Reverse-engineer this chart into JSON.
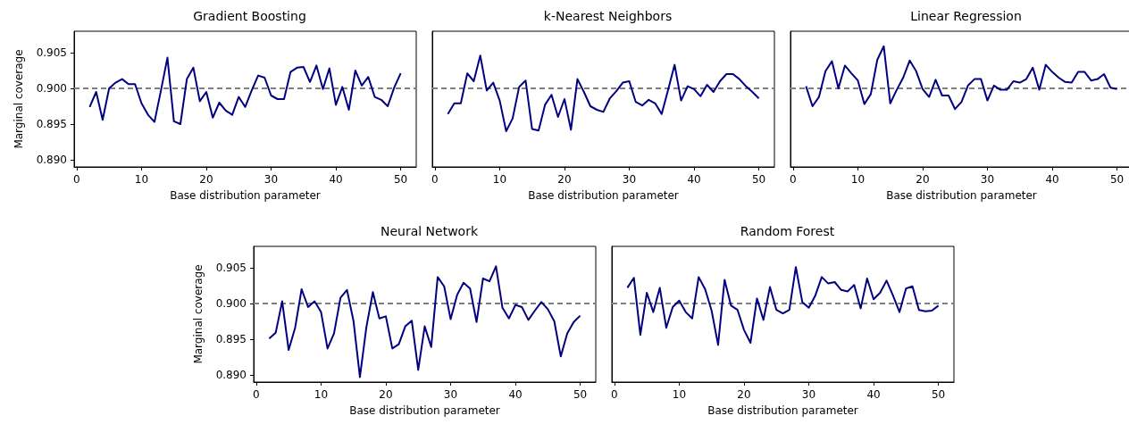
{
  "chart_data": [
    {
      "type": "line",
      "title": "Gradient Boosting",
      "xlabel": "Base distribution parameter",
      "ylabel": "Marginal coverage",
      "x": [
        2,
        3,
        4,
        5,
        6,
        7,
        8,
        9,
        10,
        11,
        12,
        13,
        14,
        15,
        16,
        17,
        18,
        19,
        20,
        21,
        22,
        23,
        24,
        25,
        26,
        27,
        28,
        29,
        30,
        31,
        32,
        33,
        34,
        35,
        36,
        37,
        38,
        39,
        40,
        41,
        42,
        43,
        44,
        45,
        46,
        47,
        48,
        49,
        50
      ],
      "series": [
        {
          "color": "#000080",
          "values": [
            0.8974,
            0.8995,
            0.8956,
            0.9,
            0.9008,
            0.9013,
            0.9006,
            0.9006,
            0.8979,
            0.8963,
            0.8953,
            0.8997,
            0.9043,
            0.8954,
            0.895,
            0.9013,
            0.9029,
            0.8982,
            0.8995,
            0.8959,
            0.898,
            0.8969,
            0.8963,
            0.8988,
            0.8974,
            0.8997,
            0.9018,
            0.9015,
            0.899,
            0.8985,
            0.8985,
            0.9023,
            0.9029,
            0.903,
            0.9009,
            0.9032,
            0.8999,
            0.9028,
            0.8977,
            0.9002,
            0.897,
            0.9025,
            0.9004,
            0.9016,
            0.8988,
            0.8984,
            0.8975,
            0.9001,
            0.9021
          ]
        }
      ],
      "xlim": [
        -0.4,
        52.4
      ],
      "xticks": [
        0,
        10,
        20,
        30,
        40,
        50
      ],
      "ylim": [
        0.889,
        0.908
      ],
      "yticks": [
        {
          "value": 0.89,
          "label": "0.890"
        },
        {
          "value": 0.895,
          "label": "0.895"
        },
        {
          "value": 0.9,
          "label": "0.900"
        },
        {
          "value": 0.905,
          "label": "0.905"
        }
      ],
      "ref_lines": [
        {
          "axis": "y",
          "value": 0.9,
          "color": "#808080",
          "line_style": "dashed"
        }
      ]
    },
    {
      "type": "line",
      "title": "k-Nearest Neighbors",
      "xlabel": "Base distribution parameter",
      "x": [
        2,
        3,
        4,
        5,
        6,
        7,
        8,
        9,
        10,
        11,
        12,
        13,
        14,
        15,
        16,
        17,
        18,
        19,
        20,
        21,
        22,
        23,
        24,
        25,
        26,
        27,
        28,
        29,
        30,
        31,
        32,
        33,
        34,
        35,
        36,
        37,
        38,
        39,
        40,
        41,
        42,
        43,
        44,
        45,
        46,
        47,
        48,
        49,
        50
      ],
      "series": [
        {
          "color": "#000080",
          "values": [
            0.8964,
            0.8979,
            0.8979,
            0.9021,
            0.901,
            0.9046,
            0.8997,
            0.9008,
            0.8983,
            0.894,
            0.8958,
            0.9002,
            0.9011,
            0.8943,
            0.8941,
            0.8977,
            0.8991,
            0.896,
            0.8985,
            0.8942,
            0.9013,
            0.8995,
            0.8975,
            0.897,
            0.8967,
            0.8986,
            0.8996,
            0.9008,
            0.901,
            0.8981,
            0.8976,
            0.8984,
            0.8979,
            0.8964,
            0.8998,
            0.9033,
            0.8983,
            0.9003,
            0.8999,
            0.8989,
            0.9005,
            0.8995,
            0.901,
            0.902,
            0.902,
            0.9013,
            0.9003,
            0.8995,
            0.8986
          ]
        }
      ],
      "xlim": [
        -0.4,
        52.4
      ],
      "xticks": [
        0,
        10,
        20,
        30,
        40,
        50
      ],
      "ylim": [
        0.889,
        0.908
      ],
      "tick_labels": "x",
      "ref_lines": [
        {
          "axis": "y",
          "value": 0.9,
          "color": "#808080",
          "line_style": "dashed"
        }
      ]
    },
    {
      "type": "line",
      "title": "Linear Regression",
      "xlabel": "Base distribution parameter",
      "x": [
        2,
        3,
        4,
        5,
        6,
        7,
        8,
        9,
        10,
        11,
        12,
        13,
        14,
        15,
        16,
        17,
        18,
        19,
        20,
        21,
        22,
        23,
        24,
        25,
        26,
        27,
        28,
        29,
        30,
        31,
        32,
        33,
        34,
        35,
        36,
        37,
        38,
        39,
        40,
        41,
        42,
        43,
        44,
        45,
        46,
        47,
        48,
        49,
        50
      ],
      "series": [
        {
          "color": "#000080",
          "values": [
            0.9003,
            0.8975,
            0.8988,
            0.9024,
            0.9038,
            0.9,
            0.9032,
            0.9021,
            0.9011,
            0.8978,
            0.8992,
            0.904,
            0.9059,
            0.8979,
            0.8998,
            0.9015,
            0.9039,
            0.9024,
            0.8999,
            0.8988,
            0.9012,
            0.899,
            0.899,
            0.8971,
            0.8981,
            0.9004,
            0.9013,
            0.9013,
            0.8983,
            0.9004,
            0.8998,
            0.8998,
            0.901,
            0.9008,
            0.9013,
            0.9029,
            0.8998,
            0.9033,
            0.9023,
            0.9015,
            0.9009,
            0.9008,
            0.9023,
            0.9023,
            0.9011,
            0.9013,
            0.902,
            0.9001,
            0.8999
          ]
        }
      ],
      "xlim": [
        -0.4,
        52.4
      ],
      "xticks": [
        0,
        10,
        20,
        30,
        40,
        50
      ],
      "ylim": [
        0.889,
        0.908
      ],
      "tick_labels": "x",
      "ref_lines": [
        {
          "axis": "y",
          "value": 0.9,
          "color": "#808080",
          "line_style": "dashed"
        }
      ]
    },
    {
      "type": "line",
      "title": "Neural Network",
      "xlabel": "Base distribution parameter",
      "ylabel": "Marginal coverage",
      "x": [
        2,
        3,
        4,
        5,
        6,
        7,
        8,
        9,
        10,
        11,
        12,
        13,
        14,
        15,
        16,
        17,
        18,
        19,
        20,
        21,
        22,
        23,
        24,
        25,
        26,
        27,
        28,
        29,
        30,
        31,
        32,
        33,
        34,
        35,
        36,
        37,
        38,
        39,
        40,
        41,
        42,
        43,
        44,
        45,
        46,
        47,
        48,
        49,
        50
      ],
      "series": [
        {
          "color": "#000080",
          "values": [
            0.8951,
            0.8959,
            0.9003,
            0.8935,
            0.8966,
            0.902,
            0.8995,
            0.9003,
            0.8988,
            0.8937,
            0.8958,
            0.9008,
            0.9019,
            0.8976,
            0.8897,
            0.8967,
            0.9016,
            0.8979,
            0.8982,
            0.8937,
            0.8943,
            0.8968,
            0.8976,
            0.8907,
            0.8968,
            0.8939,
            0.9037,
            0.9024,
            0.8978,
            0.9012,
            0.9029,
            0.9021,
            0.8974,
            0.9035,
            0.9031,
            0.9052,
            0.8994,
            0.8979,
            0.8998,
            0.8995,
            0.8977,
            0.899,
            0.9002,
            0.8992,
            0.8975,
            0.8926,
            0.8958,
            0.8974,
            0.8983
          ]
        }
      ],
      "xlim": [
        -0.4,
        52.4
      ],
      "xticks": [
        0,
        10,
        20,
        30,
        40,
        50
      ],
      "ylim": [
        0.889,
        0.908
      ],
      "yticks": [
        {
          "value": 0.89,
          "label": "0.890"
        },
        {
          "value": 0.895,
          "label": "0.895"
        },
        {
          "value": 0.9,
          "label": "0.900"
        },
        {
          "value": 0.905,
          "label": "0.905"
        }
      ],
      "ref_lines": [
        {
          "axis": "y",
          "value": 0.9,
          "color": "#808080",
          "line_style": "dashed"
        }
      ]
    },
    {
      "type": "line",
      "title": "Random Forest",
      "xlabel": "Base distribution parameter",
      "x": [
        2,
        3,
        4,
        5,
        6,
        7,
        8,
        9,
        10,
        11,
        12,
        13,
        14,
        15,
        16,
        17,
        18,
        19,
        20,
        21,
        22,
        23,
        24,
        25,
        26,
        27,
        28,
        29,
        30,
        31,
        32,
        33,
        34,
        35,
        36,
        37,
        38,
        39,
        40,
        41,
        42,
        43,
        44,
        45,
        46,
        47,
        48,
        49,
        50
      ],
      "series": [
        {
          "color": "#000080",
          "values": [
            0.9022,
            0.9036,
            0.8956,
            0.9015,
            0.8988,
            0.9022,
            0.8966,
            0.8995,
            0.9004,
            0.8988,
            0.8979,
            0.9037,
            0.902,
            0.899,
            0.8942,
            0.9033,
            0.8997,
            0.8991,
            0.8963,
            0.8945,
            0.9007,
            0.8977,
            0.9023,
            0.8991,
            0.8986,
            0.8991,
            0.9051,
            0.9002,
            0.8994,
            0.9011,
            0.9037,
            0.9028,
            0.903,
            0.9019,
            0.9017,
            0.9026,
            0.8993,
            0.9035,
            0.9006,
            0.9015,
            0.9032,
            0.9011,
            0.8988,
            0.9021,
            0.9024,
            0.8991,
            0.8989,
            0.899,
            0.8997
          ]
        }
      ],
      "xlim": [
        -0.4,
        52.4
      ],
      "xticks": [
        0,
        10,
        20,
        30,
        40,
        50
      ],
      "ylim": [
        0.889,
        0.908
      ],
      "tick_labels": "x",
      "ref_lines": [
        {
          "axis": "y",
          "value": 0.9,
          "color": "#808080",
          "line_style": "dashed"
        }
      ]
    }
  ]
}
